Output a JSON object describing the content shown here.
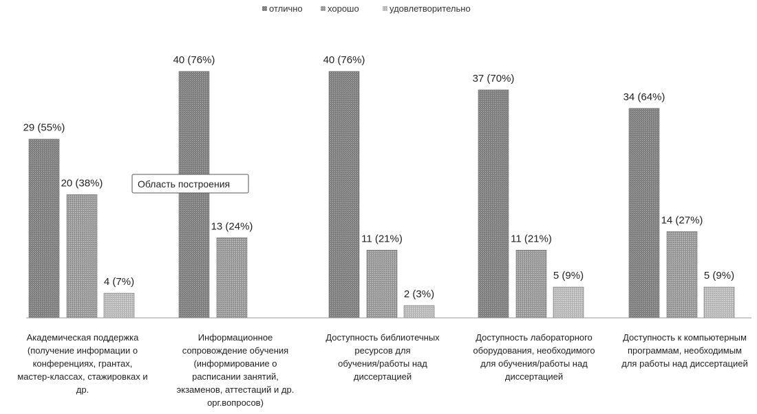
{
  "chart_data": {
    "type": "bar",
    "series": [
      {
        "name": "отлично",
        "color": "#8a8a8a",
        "values": [
          29,
          40,
          40,
          37,
          34
        ],
        "labels": [
          "29 (55%)",
          "40 (76%)",
          "40 (76%)",
          "37 (70%)",
          "34 (64%)"
        ]
      },
      {
        "name": "хорошо",
        "color": "#a9a9a9",
        "values": [
          20,
          13,
          11,
          11,
          14
        ],
        "labels": [
          "20 (38%)",
          "13 (24%)",
          "11 (21%)",
          "11 (21%)",
          "14 (27%)"
        ]
      },
      {
        "name": "удовлетворительно",
        "color": "#c8c8c8",
        "values": [
          4,
          0,
          2,
          5,
          5
        ],
        "labels": [
          "4 (7%)",
          "",
          "2 (3%)",
          "5 (9%)",
          "5 (9%)"
        ]
      }
    ],
    "categories": [
      [
        "Академическая поддержка",
        "(получение информации о",
        "конференциях, грантах,",
        "мастер-классах, стажировках и",
        "др."
      ],
      [
        "Информационное",
        "сопровождение обучения",
        "(информирование о",
        "расписании занятий,",
        "экзаменов, аттестаций  и др.",
        "орг.вопросов)"
      ],
      [
        "Доступность библиотечных",
        "ресурсов для",
        "обучения/работы над",
        "диссертацией"
      ],
      [
        "Доступность лабораторного",
        "оборудования, необходимого",
        "для обучения/работы над",
        "диссертацией"
      ],
      [
        "Доступность к компьютерным",
        "программам, необходимым",
        "для работы над диссертацией"
      ]
    ],
    "ylim": [
      0,
      40
    ],
    "legend_position": "top-center",
    "grid": false
  },
  "tooltip": {
    "label": "Область построения"
  }
}
